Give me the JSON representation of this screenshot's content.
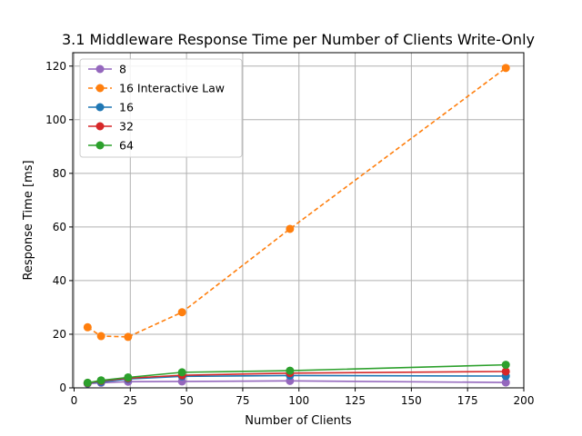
{
  "chart_data": {
    "type": "line",
    "title": "3.1 Middleware Response Time per Number of Clients Write-Only",
    "xlabel": "Number of Clients",
    "ylabel": "Response Time [ms]",
    "xlim": [
      -0.6,
      200
    ],
    "ylim": [
      0,
      125
    ],
    "xticks": [
      0,
      25,
      50,
      75,
      100,
      125,
      150,
      175,
      200
    ],
    "yticks": [
      0,
      20,
      40,
      60,
      80,
      100,
      120
    ],
    "grid": true,
    "legend_position": "top-left",
    "series": [
      {
        "name": "8",
        "color": "#9467bd",
        "style": "solid",
        "x": [
          6,
          12,
          24,
          48,
          96,
          192
        ],
        "y": [
          1.6,
          1.9,
          2.3,
          2.4,
          2.6,
          2.0
        ]
      },
      {
        "name": "16 Interactive Law",
        "color": "#ff7f0e",
        "style": "dashed",
        "x": [
          6,
          12,
          24,
          48,
          96,
          192
        ],
        "y": [
          22.6,
          19.3,
          19.0,
          28.2,
          59.3,
          119.3
        ]
      },
      {
        "name": "16",
        "color": "#1f77b4",
        "style": "solid",
        "x": [
          6,
          12,
          24,
          48,
          96,
          192
        ],
        "y": [
          1.7,
          2.2,
          3.3,
          4.3,
          4.6,
          4.4
        ]
      },
      {
        "name": "32",
        "color": "#d62728",
        "style": "solid",
        "x": [
          6,
          12,
          24,
          48,
          96,
          192
        ],
        "y": [
          1.8,
          2.6,
          3.6,
          4.7,
          5.5,
          6.1
        ]
      },
      {
        "name": "64",
        "color": "#2ca02c",
        "style": "solid",
        "x": [
          6,
          12,
          24,
          48,
          96,
          192
        ],
        "y": [
          1.9,
          2.8,
          3.9,
          5.8,
          6.4,
          8.6
        ]
      }
    ]
  }
}
